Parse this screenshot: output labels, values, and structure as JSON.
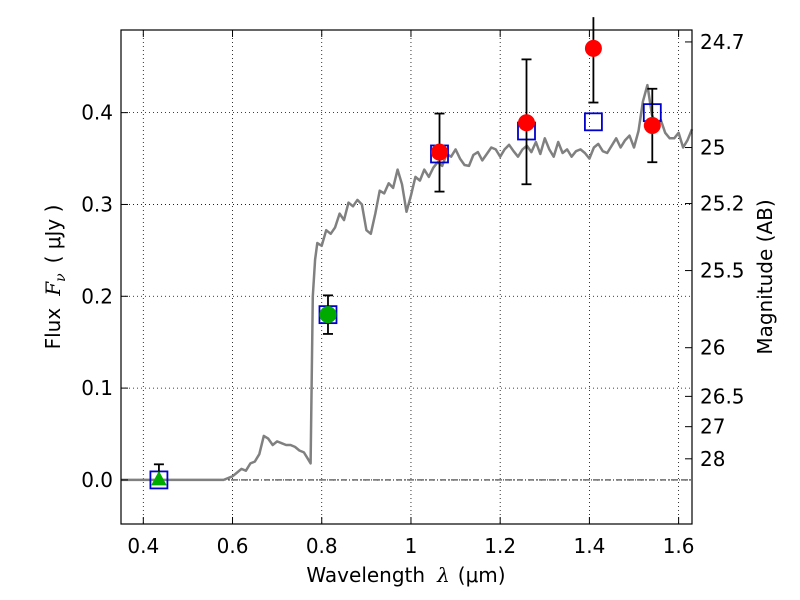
{
  "chart_data": {
    "type": "scatter",
    "xlabel_prefix": "Wavelength",
    "xlabel_symbol": "λ",
    "xlabel_unit": "(μm)",
    "ylabel_prefix": "Flux",
    "ylabel_symbol": "F",
    "ylabel_subscript": "ν",
    "ylabel_unit": "( μJy )",
    "y2label": "Magnitude (AB)",
    "xlim": [
      0.35,
      1.63
    ],
    "ylim": [
      -0.048,
      0.49
    ],
    "grid": true,
    "x_ticks": [
      0.4,
      0.6,
      0.8,
      1.0,
      1.2,
      1.4,
      1.6
    ],
    "x_tick_labels": [
      "0.4",
      "0.6",
      "0.8",
      "1",
      "1.2",
      "1.4",
      "1.6"
    ],
    "y_ticks": [
      0.0,
      0.1,
      0.2,
      0.3,
      0.4
    ],
    "y_tick_labels": [
      "0.0",
      "0.1",
      "0.2",
      "0.3",
      "0.4"
    ],
    "y2_ticks": [
      {
        "label": "24.7",
        "flux": 0.477
      },
      {
        "label": "25",
        "flux": 0.362
      },
      {
        "label": "25.2",
        "flux": 0.301
      },
      {
        "label": "25.5",
        "flux": 0.228
      },
      {
        "label": "26",
        "flux": 0.144
      },
      {
        "label": "26.5",
        "flux": 0.091
      },
      {
        "label": "27",
        "flux": 0.058
      },
      {
        "label": "28",
        "flux": 0.023
      }
    ],
    "model_sed": {
      "color": "#808080",
      "x": [
        0.35,
        0.4,
        0.45,
        0.5,
        0.55,
        0.58,
        0.6,
        0.61,
        0.62,
        0.63,
        0.64,
        0.65,
        0.66,
        0.67,
        0.68,
        0.69,
        0.7,
        0.71,
        0.72,
        0.73,
        0.74,
        0.75,
        0.76,
        0.77,
        0.775,
        0.78,
        0.785,
        0.79,
        0.8,
        0.81,
        0.82,
        0.83,
        0.84,
        0.85,
        0.86,
        0.87,
        0.88,
        0.89,
        0.9,
        0.91,
        0.92,
        0.93,
        0.94,
        0.95,
        0.96,
        0.97,
        0.98,
        0.99,
        1.0,
        1.01,
        1.02,
        1.03,
        1.04,
        1.05,
        1.06,
        1.07,
        1.08,
        1.09,
        1.1,
        1.11,
        1.12,
        1.13,
        1.14,
        1.15,
        1.16,
        1.17,
        1.18,
        1.19,
        1.2,
        1.21,
        1.22,
        1.23,
        1.24,
        1.25,
        1.26,
        1.27,
        1.28,
        1.29,
        1.3,
        1.31,
        1.32,
        1.33,
        1.34,
        1.35,
        1.36,
        1.37,
        1.38,
        1.39,
        1.4,
        1.41,
        1.42,
        1.43,
        1.44,
        1.45,
        1.46,
        1.47,
        1.48,
        1.49,
        1.5,
        1.51,
        1.52,
        1.53,
        1.54,
        1.55,
        1.56,
        1.57,
        1.58,
        1.59,
        1.6,
        1.61,
        1.62,
        1.63
      ],
      "y": [
        0.0,
        0.0,
        0.0,
        0.0,
        0.0,
        0.0,
        0.004,
        0.008,
        0.012,
        0.01,
        0.018,
        0.02,
        0.028,
        0.048,
        0.045,
        0.038,
        0.042,
        0.04,
        0.038,
        0.038,
        0.036,
        0.032,
        0.03,
        0.022,
        0.018,
        0.2,
        0.24,
        0.258,
        0.255,
        0.272,
        0.268,
        0.275,
        0.29,
        0.283,
        0.302,
        0.298,
        0.305,
        0.3,
        0.272,
        0.268,
        0.29,
        0.315,
        0.312,
        0.323,
        0.318,
        0.338,
        0.322,
        0.292,
        0.31,
        0.33,
        0.326,
        0.338,
        0.33,
        0.34,
        0.346,
        0.342,
        0.355,
        0.352,
        0.36,
        0.35,
        0.343,
        0.342,
        0.354,
        0.357,
        0.348,
        0.355,
        0.362,
        0.36,
        0.352,
        0.36,
        0.365,
        0.358,
        0.352,
        0.36,
        0.364,
        0.357,
        0.368,
        0.355,
        0.372,
        0.36,
        0.352,
        0.368,
        0.356,
        0.36,
        0.352,
        0.358,
        0.36,
        0.356,
        0.35,
        0.362,
        0.366,
        0.358,
        0.356,
        0.364,
        0.372,
        0.362,
        0.37,
        0.375,
        0.362,
        0.38,
        0.412,
        0.43,
        0.398,
        0.386,
        0.392,
        0.378,
        0.372,
        0.372,
        0.378,
        0.362,
        0.37,
        0.382
      ]
    },
    "predicted_photometry": {
      "marker": "open-square",
      "color": "#0000cc",
      "x": [
        0.435,
        0.814,
        1.064,
        1.259,
        1.409,
        1.541
      ],
      "y": [
        0.0,
        0.18,
        0.355,
        0.38,
        0.39,
        0.4
      ]
    },
    "observed_detections": {
      "marker": "circle",
      "color": "#ff0000",
      "x": [
        1.064,
        1.259,
        1.409,
        1.541
      ],
      "y": [
        0.357,
        0.389,
        0.47,
        0.386
      ],
      "yerr_low": [
        0.043,
        0.067,
        0.059,
        0.04
      ],
      "yerr_high": [
        0.042,
        0.069,
        0.034,
        0.04
      ]
    },
    "observed_green_circle": {
      "marker": "circle",
      "color": "#00aa00",
      "x": [
        0.814
      ],
      "y": [
        0.18
      ],
      "yerr_low": [
        0.021
      ],
      "yerr_high": [
        0.021
      ]
    },
    "observed_green_triangle": {
      "marker": "triangle",
      "color": "#00aa00",
      "x": [
        0.435
      ],
      "y": [
        0.0
      ],
      "yerr_low": [
        0.0
      ],
      "yerr_high": [
        0.017
      ]
    },
    "zero_line": {
      "y": 0.0,
      "style": "dash-dot"
    }
  }
}
